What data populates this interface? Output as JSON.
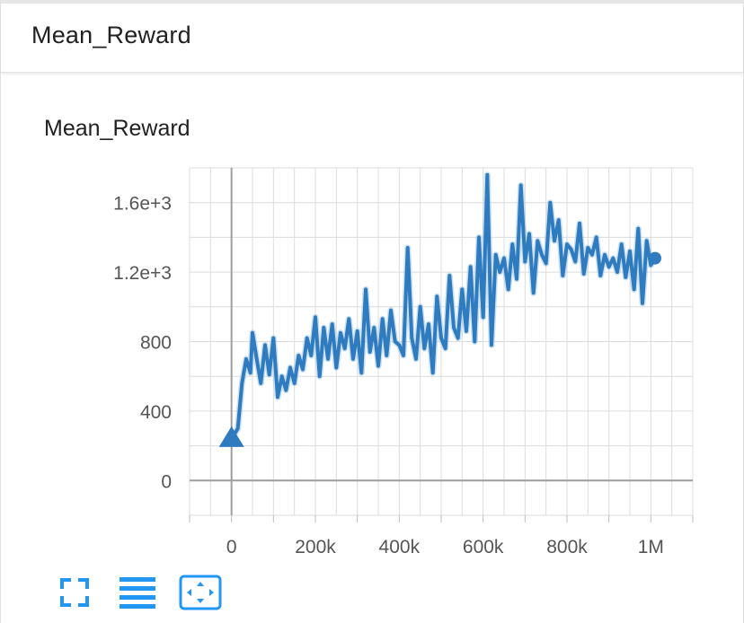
{
  "group": {
    "title": "Mean_Reward"
  },
  "toolbar": {
    "buttons": [
      {
        "name": "expand-chart-button",
        "icon": "fullscreen-icon"
      },
      {
        "name": "toggle-log-scale-button",
        "icon": "list-lines-icon"
      },
      {
        "name": "fit-domain-button",
        "icon": "fit-screen-icon"
      }
    ]
  },
  "colors": {
    "series": "#2f7bbf",
    "accent": "#2196f3",
    "grid": "#dcdcdc",
    "axis": "#9e9e9e"
  },
  "chart_data": {
    "type": "line",
    "title": "Mean_Reward",
    "xlabel": "",
    "ylabel": "",
    "xlim": [
      -100000,
      1100000
    ],
    "ylim": [
      -200,
      1800
    ],
    "grid": true,
    "x_ticks": [
      0,
      200000,
      400000,
      600000,
      800000,
      1000000
    ],
    "x_tick_labels": [
      "0",
      "200k",
      "400k",
      "600k",
      "800k",
      "1M"
    ],
    "y_ticks": [
      0,
      400,
      800,
      1200,
      1600
    ],
    "y_tick_labels": [
      "0",
      "400",
      "800",
      "1.2e+3",
      "1.6e+3"
    ],
    "series": [
      {
        "x": [
          0,
          15000,
          25000,
          35000,
          45000,
          50000,
          60000,
          70000,
          80000,
          90000,
          100000,
          110000,
          120000,
          130000,
          140000,
          150000,
          160000,
          170000,
          180000,
          190000,
          200000,
          210000,
          220000,
          230000,
          240000,
          250000,
          260000,
          270000,
          280000,
          290000,
          300000,
          310000,
          320000,
          330000,
          340000,
          350000,
          360000,
          370000,
          380000,
          390000,
          400000,
          410000,
          420000,
          430000,
          440000,
          450000,
          460000,
          470000,
          480000,
          490000,
          500000,
          510000,
          520000,
          530000,
          540000,
          550000,
          560000,
          570000,
          580000,
          590000,
          600000,
          610000,
          620000,
          630000,
          640000,
          650000,
          660000,
          670000,
          680000,
          690000,
          700000,
          710000,
          720000,
          730000,
          740000,
          750000,
          760000,
          770000,
          780000,
          790000,
          800000,
          810000,
          820000,
          830000,
          840000,
          850000,
          860000,
          870000,
          880000,
          890000,
          900000,
          910000,
          920000,
          930000,
          940000,
          950000,
          960000,
          970000,
          980000,
          990000,
          1000000,
          1010000
        ],
        "y": [
          240,
          300,
          560,
          700,
          620,
          850,
          700,
          560,
          780,
          610,
          820,
          480,
          600,
          520,
          650,
          560,
          720,
          640,
          820,
          720,
          940,
          600,
          880,
          700,
          900,
          650,
          850,
          760,
          930,
          700,
          860,
          620,
          1100,
          740,
          880,
          660,
          930,
          720,
          980,
          800,
          780,
          720,
          1340,
          820,
          700,
          1000,
          760,
          900,
          620,
          1060,
          820,
          760,
          1180,
          880,
          820,
          1100,
          860,
          1230,
          800,
          1400,
          940,
          1760,
          780,
          1300,
          1200,
          1280,
          1100,
          1360,
          1160,
          1700,
          1260,
          1420,
          1080,
          1380,
          1300,
          1250,
          1600,
          1380,
          1500,
          1180,
          1360,
          1330,
          1260,
          1480,
          1190,
          1340,
          1300,
          1400,
          1180,
          1300,
          1230,
          1280,
          1200,
          1360,
          1170,
          1320,
          1100,
          1450,
          1020,
          1380,
          1240,
          1280
        ]
      }
    ]
  }
}
